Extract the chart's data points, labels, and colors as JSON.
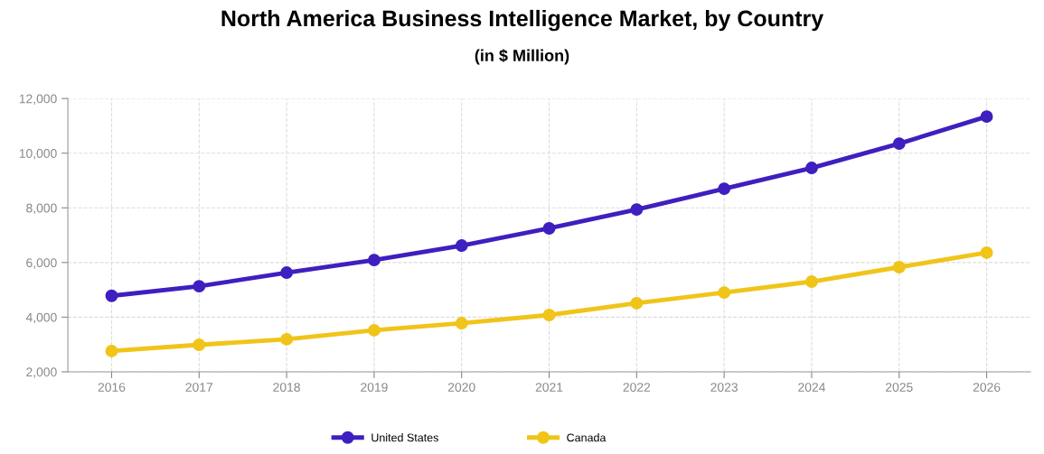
{
  "chart_data": {
    "type": "line",
    "title": "North America Business Intelligence Market, by Country",
    "subtitle": "(in $ Million)",
    "categories": [
      "2016",
      "2017",
      "2018",
      "2019",
      "2020",
      "2021",
      "2022",
      "2023",
      "2024",
      "2025",
      "2026"
    ],
    "series": [
      {
        "name": "United States",
        "color": "#3f1fbf",
        "values": [
          4780,
          5130,
          5630,
          6090,
          6620,
          7250,
          7940,
          8700,
          9460,
          10350,
          11340
        ]
      },
      {
        "name": "Canada",
        "color": "#f0c419",
        "values": [
          2760,
          2990,
          3190,
          3520,
          3780,
          4080,
          4510,
          4900,
          5300,
          5830,
          6360
        ]
      }
    ],
    "ylim": [
      2000,
      12000
    ],
    "yticks": [
      {
        "value": 2000,
        "label": "2,000"
      },
      {
        "value": 4000,
        "label": "4,000"
      },
      {
        "value": 6000,
        "label": "6,000"
      },
      {
        "value": 8000,
        "label": "8,000"
      },
      {
        "value": 10000,
        "label": "10,000"
      },
      {
        "value": 12000,
        "label": "12,000"
      }
    ],
    "grid": true,
    "legend": "bottom",
    "marker": "circle",
    "line_style": "solid"
  }
}
